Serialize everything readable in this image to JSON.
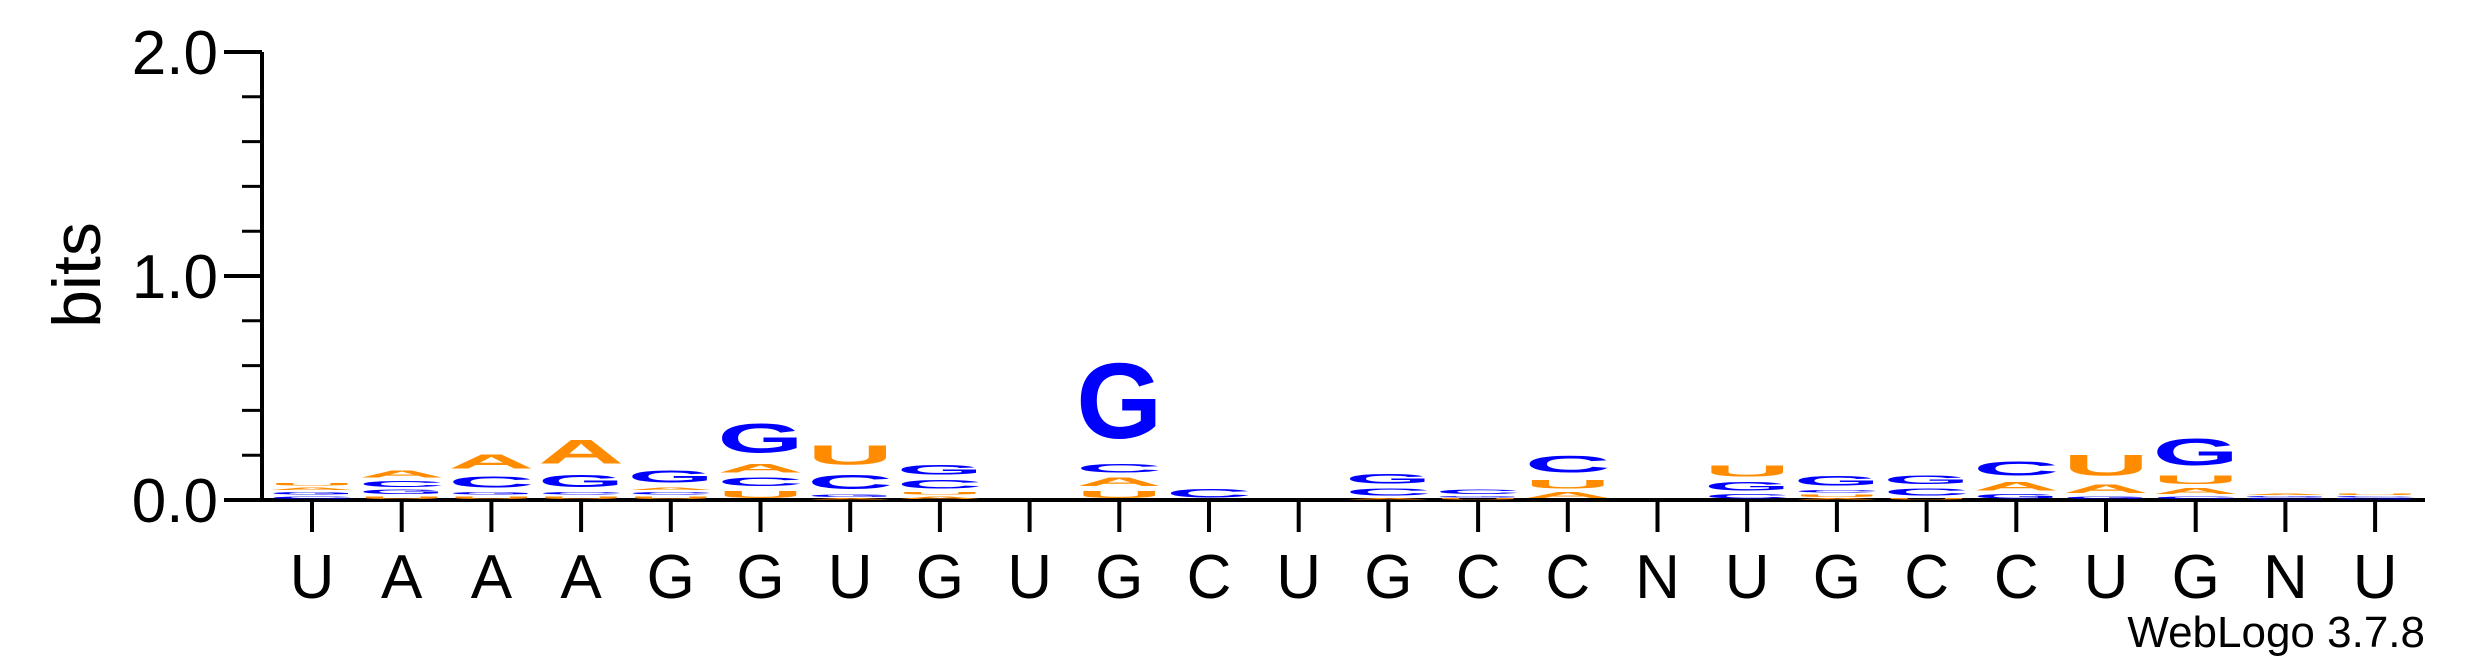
{
  "chart_data": {
    "type": "sequence-logo",
    "ylabel": "bits",
    "ylim": [
      0,
      2.0
    ],
    "yticks": [
      "0.0",
      "1.0",
      "2.0"
    ],
    "colors": {
      "A": "#ff8c00",
      "U": "#ff8c00",
      "G": "#0000ff",
      "C": "#0000ff"
    },
    "positions": [
      {
        "label": "U",
        "stack": [
          {
            "b": "C",
            "h": 0.02
          },
          {
            "b": "G",
            "h": 0.02
          },
          {
            "b": "A",
            "h": 0.02
          },
          {
            "b": "U",
            "h": 0.02
          }
        ]
      },
      {
        "label": "A",
        "stack": [
          {
            "b": "U",
            "h": 0.02
          },
          {
            "b": "G",
            "h": 0.03
          },
          {
            "b": "C",
            "h": 0.04
          },
          {
            "b": "A",
            "h": 0.05
          }
        ]
      },
      {
        "label": "A",
        "stack": [
          {
            "b": "U",
            "h": 0.02
          },
          {
            "b": "G",
            "h": 0.02
          },
          {
            "b": "C",
            "h": 0.08
          },
          {
            "b": "A",
            "h": 0.1
          }
        ]
      },
      {
        "label": "A",
        "stack": [
          {
            "b": "U",
            "h": 0.02
          },
          {
            "b": "C",
            "h": 0.02
          },
          {
            "b": "G",
            "h": 0.09
          },
          {
            "b": "A",
            "h": 0.17
          }
        ]
      },
      {
        "label": "G",
        "stack": [
          {
            "b": "U",
            "h": 0.02
          },
          {
            "b": "C",
            "h": 0.02
          },
          {
            "b": "A",
            "h": 0.02
          },
          {
            "b": "G",
            "h": 0.09
          }
        ]
      },
      {
        "label": "G",
        "stack": [
          {
            "b": "U",
            "h": 0.05
          },
          {
            "b": "C",
            "h": 0.06
          },
          {
            "b": "A",
            "h": 0.06
          },
          {
            "b": "G",
            "h": 0.21
          }
        ]
      },
      {
        "label": "U",
        "stack": [
          {
            "b": "A",
            "h": 0.01
          },
          {
            "b": "G",
            "h": 0.02
          },
          {
            "b": "C",
            "h": 0.1
          },
          {
            "b": "U",
            "h": 0.14
          }
        ]
      },
      {
        "label": "G",
        "stack": [
          {
            "b": "A",
            "h": 0.02
          },
          {
            "b": "U",
            "h": 0.02
          },
          {
            "b": "C",
            "h": 0.06
          },
          {
            "b": "G",
            "h": 0.07
          }
        ]
      },
      {
        "label": "U",
        "stack": []
      },
      {
        "label": "G",
        "stack": [
          {
            "b": "U",
            "h": 0.05
          },
          {
            "b": "A",
            "h": 0.06
          },
          {
            "b": "C",
            "h": 0.06
          },
          {
            "b": "G",
            "h": 0.54
          }
        ]
      },
      {
        "label": "C",
        "stack": [
          {
            "b": "C",
            "h": 0.06
          }
        ]
      },
      {
        "label": "U",
        "stack": []
      },
      {
        "label": "G",
        "stack": [
          {
            "b": "A",
            "h": 0.01
          },
          {
            "b": "C",
            "h": 0.05
          },
          {
            "b": "G",
            "h": 0.07
          }
        ]
      },
      {
        "label": "C",
        "stack": [
          {
            "b": "U",
            "h": 0.01
          },
          {
            "b": "G",
            "h": 0.01
          },
          {
            "b": "C",
            "h": 0.03
          }
        ]
      },
      {
        "label": "C",
        "stack": [
          {
            "b": "A",
            "h": 0.04
          },
          {
            "b": "U",
            "h": 0.06
          },
          {
            "b": "C",
            "h": 0.12
          }
        ]
      },
      {
        "label": "N",
        "stack": []
      },
      {
        "label": "U",
        "stack": [
          {
            "b": "C",
            "h": 0.03
          },
          {
            "b": "G",
            "h": 0.06
          },
          {
            "b": "U",
            "h": 0.08
          }
        ]
      },
      {
        "label": "G",
        "stack": [
          {
            "b": "A",
            "h": 0.01
          },
          {
            "b": "U",
            "h": 0.02
          },
          {
            "b": "C",
            "h": 0.02
          },
          {
            "b": "G",
            "h": 0.07
          }
        ]
      },
      {
        "label": "C",
        "stack": [
          {
            "b": "U",
            "h": 0.01
          },
          {
            "b": "C",
            "h": 0.05
          },
          {
            "b": "G",
            "h": 0.06
          }
        ]
      },
      {
        "label": "C",
        "stack": [
          {
            "b": "G",
            "h": 0.03
          },
          {
            "b": "A",
            "h": 0.06
          },
          {
            "b": "C",
            "h": 0.1
          }
        ]
      },
      {
        "label": "U",
        "stack": [
          {
            "b": "G",
            "h": 0.02
          },
          {
            "b": "A",
            "h": 0.06
          },
          {
            "b": "U",
            "h": 0.15
          }
        ]
      },
      {
        "label": "G",
        "stack": [
          {
            "b": "C",
            "h": 0.02
          },
          {
            "b": "A",
            "h": 0.04
          },
          {
            "b": "U",
            "h": 0.06
          },
          {
            "b": "G",
            "h": 0.19
          }
        ]
      },
      {
        "label": "N",
        "stack": [
          {
            "b": "C",
            "h": 0.01
          },
          {
            "b": "G",
            "h": 0.01
          },
          {
            "b": "A",
            "h": 0.01
          }
        ]
      },
      {
        "label": "U",
        "stack": [
          {
            "b": "G",
            "h": 0.01
          },
          {
            "b": "C",
            "h": 0.01
          },
          {
            "b": "U",
            "h": 0.01
          }
        ]
      }
    ]
  },
  "footer": {
    "version": "WebLogo 3.7.8"
  }
}
